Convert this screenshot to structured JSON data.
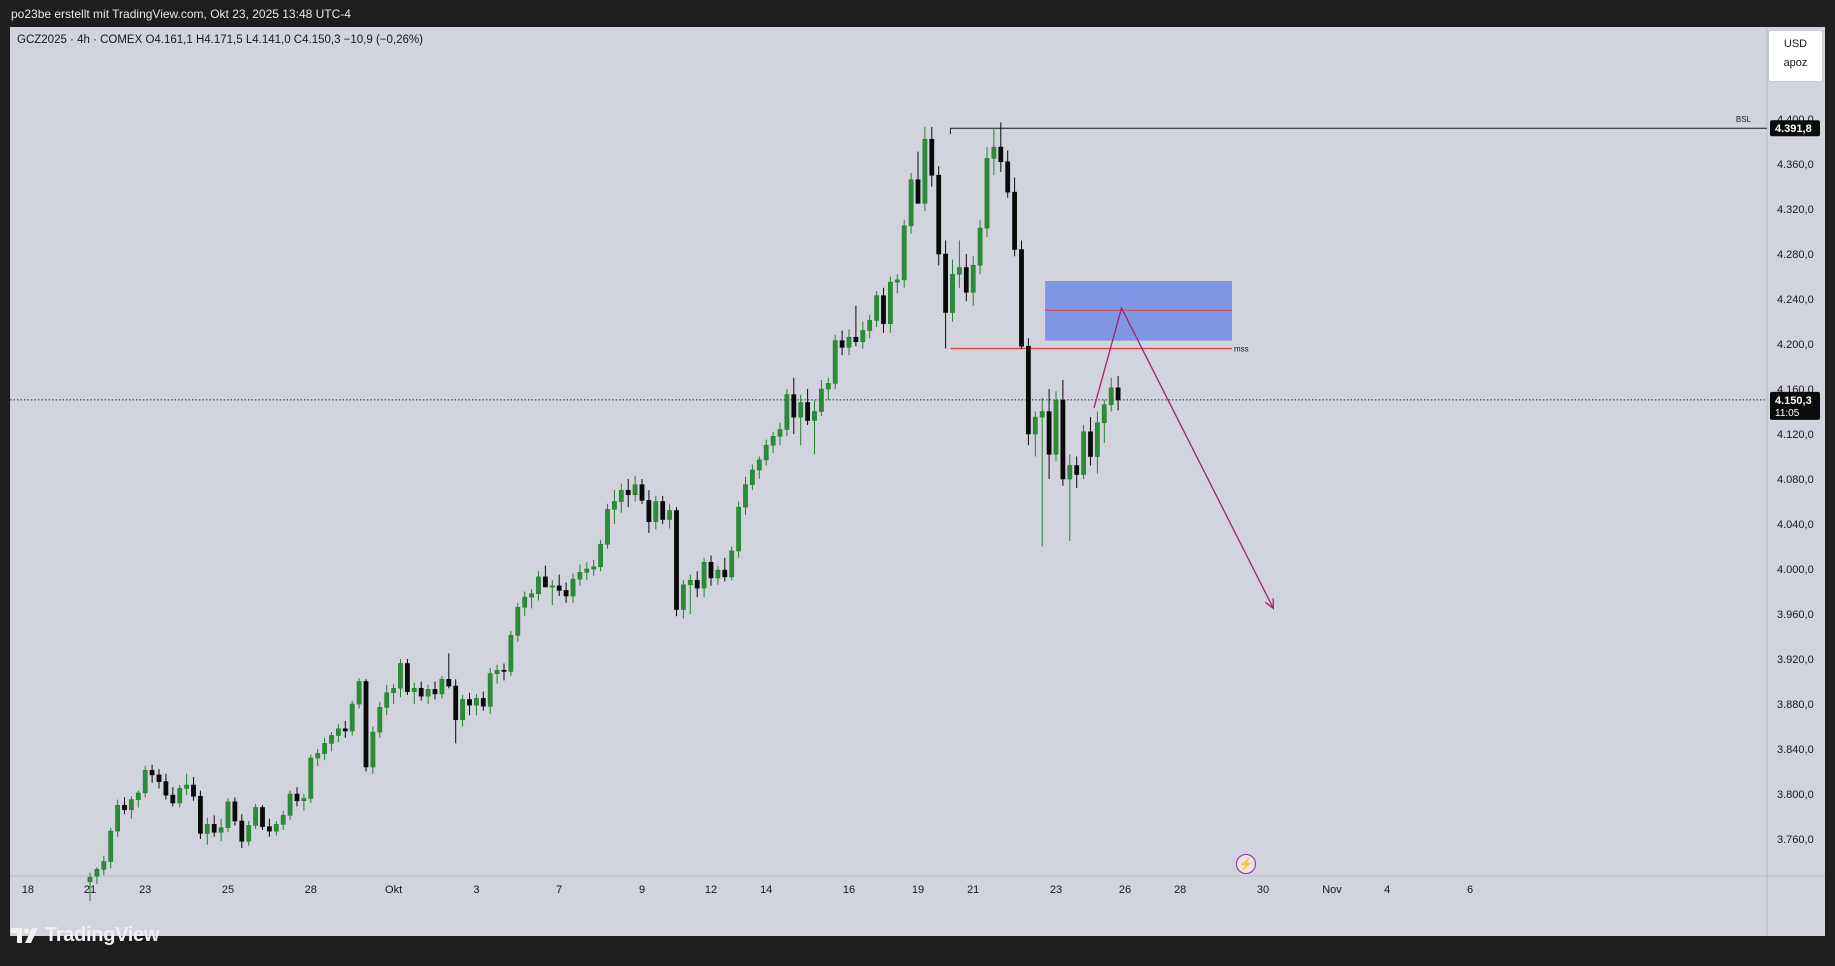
{
  "header": {
    "attribution": "po23be erstellt mit TradingView.com, Okt 23, 2025 13:48 UTC-4"
  },
  "legend": {
    "text": "GCZ2025 · 4h · COMEX  O4.161,1  H4.171,5  L4.141,0  C4.150,3  −10,9 (−0,26%)"
  },
  "unit_box": {
    "currency": "USD",
    "scale": "apoz"
  },
  "brand": {
    "logo_text": "TradingView"
  },
  "colors": {
    "up": "#23802f",
    "down": "#0a0a0a",
    "zone": "#5f7fe6",
    "line_red": "#e0413f",
    "arrow": "#a0226e"
  },
  "chart_data": {
    "type": "candlestick",
    "symbol": "GCZ2025",
    "interval": "4h",
    "exchange": "COMEX",
    "y_ticks": [
      3760,
      3800,
      3840,
      3880,
      3920,
      3960,
      4000,
      4040,
      4080,
      4120,
      4160,
      4200,
      4240,
      4280,
      4320,
      4360,
      4400
    ],
    "y_tick_labels": [
      "3.760,0",
      "3.800,0",
      "3.840,0",
      "3.880,0",
      "3.920,0",
      "3.960,0",
      "4.000,0",
      "4.040,0",
      "4.080,0",
      "4.120,0",
      "4.160,0",
      "4.200,0",
      "4.240,0",
      "4.280,0",
      "4.320,0",
      "4.360,0",
      "4.400,0"
    ],
    "ylim": [
      3725,
      4480
    ],
    "x_ticks": [
      {
        "label": "18",
        "i": -9
      },
      {
        "label": "21",
        "i": 0
      },
      {
        "label": "23",
        "i": 8
      },
      {
        "label": "25",
        "i": 20
      },
      {
        "label": "28",
        "i": 32
      },
      {
        "label": "Okt",
        "i": 44
      },
      {
        "label": "3",
        "i": 56
      },
      {
        "label": "7",
        "i": 68
      },
      {
        "label": "9",
        "i": 80
      },
      {
        "label": "12",
        "i": 90
      },
      {
        "label": "14",
        "i": 98
      },
      {
        "label": "16",
        "i": 110
      },
      {
        "label": "19",
        "i": 120
      },
      {
        "label": "21",
        "i": 128
      },
      {
        "label": "23",
        "i": 140
      },
      {
        "label": "26",
        "i": 150
      },
      {
        "label": "28",
        "i": 158
      },
      {
        "label": "30",
        "i": 170
      },
      {
        "label": "Nov",
        "i": 180
      },
      {
        "label": "4",
        "i": 188
      },
      {
        "label": "6",
        "i": 200
      }
    ],
    "last_price": {
      "value": 4150.3,
      "label": "4.150,3",
      "countdown": "11:05"
    },
    "bsl": {
      "value": 4391.8,
      "label": "4.391,8",
      "text": "BSL"
    },
    "mss": {
      "value": 4196,
      "text": "mss"
    },
    "zone": {
      "top": 4256,
      "bottom": 4203,
      "mid": 4230
    },
    "projection": [
      {
        "i": 145.5,
        "price": 4143
      },
      {
        "i": 149.5,
        "price": 4232
      },
      {
        "i": 171.5,
        "price": 3965
      }
    ],
    "candles": [
      {
        "o": 3722,
        "h": 3730,
        "l": 3705,
        "c": 3726
      },
      {
        "o": 3727,
        "h": 3735,
        "l": 3720,
        "c": 3733
      },
      {
        "o": 3733,
        "h": 3745,
        "l": 3728,
        "c": 3740
      },
      {
        "o": 3740,
        "h": 3770,
        "l": 3734,
        "c": 3767
      },
      {
        "o": 3767,
        "h": 3795,
        "l": 3762,
        "c": 3790
      },
      {
        "o": 3790,
        "h": 3797,
        "l": 3782,
        "c": 3786
      },
      {
        "o": 3786,
        "h": 3798,
        "l": 3778,
        "c": 3795
      },
      {
        "o": 3795,
        "h": 3803,
        "l": 3788,
        "c": 3801
      },
      {
        "o": 3801,
        "h": 3825,
        "l": 3797,
        "c": 3821
      },
      {
        "o": 3821,
        "h": 3826,
        "l": 3810,
        "c": 3817
      },
      {
        "o": 3817,
        "h": 3822,
        "l": 3805,
        "c": 3811
      },
      {
        "o": 3811,
        "h": 3818,
        "l": 3795,
        "c": 3799
      },
      {
        "o": 3799,
        "h": 3806,
        "l": 3789,
        "c": 3792
      },
      {
        "o": 3792,
        "h": 3808,
        "l": 3788,
        "c": 3805
      },
      {
        "o": 3805,
        "h": 3818,
        "l": 3799,
        "c": 3808
      },
      {
        "o": 3808,
        "h": 3815,
        "l": 3794,
        "c": 3798
      },
      {
        "o": 3798,
        "h": 3803,
        "l": 3760,
        "c": 3765
      },
      {
        "o": 3765,
        "h": 3779,
        "l": 3755,
        "c": 3773
      },
      {
        "o": 3773,
        "h": 3781,
        "l": 3762,
        "c": 3766
      },
      {
        "o": 3766,
        "h": 3778,
        "l": 3758,
        "c": 3770
      },
      {
        "o": 3770,
        "h": 3796,
        "l": 3766,
        "c": 3793
      },
      {
        "o": 3793,
        "h": 3797,
        "l": 3772,
        "c": 3776
      },
      {
        "o": 3776,
        "h": 3782,
        "l": 3752,
        "c": 3758
      },
      {
        "o": 3758,
        "h": 3776,
        "l": 3754,
        "c": 3772
      },
      {
        "o": 3772,
        "h": 3791,
        "l": 3769,
        "c": 3788
      },
      {
        "o": 3788,
        "h": 3790,
        "l": 3768,
        "c": 3771
      },
      {
        "o": 3771,
        "h": 3778,
        "l": 3762,
        "c": 3767
      },
      {
        "o": 3767,
        "h": 3776,
        "l": 3763,
        "c": 3773
      },
      {
        "o": 3773,
        "h": 3785,
        "l": 3768,
        "c": 3781
      },
      {
        "o": 3781,
        "h": 3803,
        "l": 3777,
        "c": 3800
      },
      {
        "o": 3800,
        "h": 3806,
        "l": 3789,
        "c": 3794
      },
      {
        "o": 3794,
        "h": 3800,
        "l": 3785,
        "c": 3796
      },
      {
        "o": 3796,
        "h": 3835,
        "l": 3792,
        "c": 3832
      },
      {
        "o": 3832,
        "h": 3840,
        "l": 3825,
        "c": 3836
      },
      {
        "o": 3836,
        "h": 3850,
        "l": 3830,
        "c": 3845
      },
      {
        "o": 3845,
        "h": 3855,
        "l": 3838,
        "c": 3852
      },
      {
        "o": 3852,
        "h": 3862,
        "l": 3846,
        "c": 3858
      },
      {
        "o": 3858,
        "h": 3865,
        "l": 3850,
        "c": 3856
      },
      {
        "o": 3856,
        "h": 3883,
        "l": 3852,
        "c": 3880
      },
      {
        "o": 3880,
        "h": 3903,
        "l": 3876,
        "c": 3900
      },
      {
        "o": 3900,
        "h": 3902,
        "l": 3820,
        "c": 3824
      },
      {
        "o": 3824,
        "h": 3860,
        "l": 3818,
        "c": 3855
      },
      {
        "o": 3855,
        "h": 3882,
        "l": 3850,
        "c": 3877
      },
      {
        "o": 3877,
        "h": 3897,
        "l": 3870,
        "c": 3890
      },
      {
        "o": 3890,
        "h": 3898,
        "l": 3880,
        "c": 3894
      },
      {
        "o": 3894,
        "h": 3920,
        "l": 3886,
        "c": 3916
      },
      {
        "o": 3916,
        "h": 3920,
        "l": 3888,
        "c": 3891
      },
      {
        "o": 3891,
        "h": 3899,
        "l": 3880,
        "c": 3894
      },
      {
        "o": 3894,
        "h": 3900,
        "l": 3883,
        "c": 3887
      },
      {
        "o": 3887,
        "h": 3897,
        "l": 3880,
        "c": 3893
      },
      {
        "o": 3893,
        "h": 3900,
        "l": 3884,
        "c": 3889
      },
      {
        "o": 3889,
        "h": 3905,
        "l": 3885,
        "c": 3902
      },
      {
        "o": 3902,
        "h": 3925,
        "l": 3894,
        "c": 3896
      },
      {
        "o": 3896,
        "h": 3902,
        "l": 3845,
        "c": 3866
      },
      {
        "o": 3866,
        "h": 3888,
        "l": 3860,
        "c": 3884
      },
      {
        "o": 3884,
        "h": 3890,
        "l": 3870,
        "c": 3879
      },
      {
        "o": 3879,
        "h": 3889,
        "l": 3870,
        "c": 3885
      },
      {
        "o": 3885,
        "h": 3891,
        "l": 3874,
        "c": 3878
      },
      {
        "o": 3878,
        "h": 3912,
        "l": 3871,
        "c": 3907
      },
      {
        "o": 3907,
        "h": 3915,
        "l": 3898,
        "c": 3910
      },
      {
        "o": 3910,
        "h": 3916,
        "l": 3901,
        "c": 3909
      },
      {
        "o": 3909,
        "h": 3945,
        "l": 3905,
        "c": 3941
      },
      {
        "o": 3941,
        "h": 3970,
        "l": 3935,
        "c": 3966
      },
      {
        "o": 3966,
        "h": 3980,
        "l": 3958,
        "c": 3975
      },
      {
        "o": 3975,
        "h": 3982,
        "l": 3965,
        "c": 3978
      },
      {
        "o": 3978,
        "h": 3998,
        "l": 3972,
        "c": 3993
      },
      {
        "o": 3993,
        "h": 4003,
        "l": 3985,
        "c": 3984
      },
      {
        "o": 3984,
        "h": 3990,
        "l": 3968,
        "c": 3985
      },
      {
        "o": 3985,
        "h": 3995,
        "l": 3976,
        "c": 3981
      },
      {
        "o": 3981,
        "h": 3988,
        "l": 3970,
        "c": 3976
      },
      {
        "o": 3976,
        "h": 3996,
        "l": 3970,
        "c": 3991
      },
      {
        "o": 3991,
        "h": 4004,
        "l": 3985,
        "c": 3997
      },
      {
        "o": 3997,
        "h": 4006,
        "l": 3990,
        "c": 4000
      },
      {
        "o": 4000,
        "h": 4008,
        "l": 3994,
        "c": 4002
      },
      {
        "o": 4002,
        "h": 4026,
        "l": 3998,
        "c": 4022
      },
      {
        "o": 4022,
        "h": 4058,
        "l": 4018,
        "c": 4053
      },
      {
        "o": 4053,
        "h": 4070,
        "l": 4040,
        "c": 4060
      },
      {
        "o": 4060,
        "h": 4076,
        "l": 4050,
        "c": 4070
      },
      {
        "o": 4070,
        "h": 4080,
        "l": 4055,
        "c": 4066
      },
      {
        "o": 4066,
        "h": 4083,
        "l": 4060,
        "c": 4075
      },
      {
        "o": 4075,
        "h": 4080,
        "l": 4058,
        "c": 4061
      },
      {
        "o": 4061,
        "h": 4070,
        "l": 4032,
        "c": 4042
      },
      {
        "o": 4042,
        "h": 4065,
        "l": 4035,
        "c": 4060
      },
      {
        "o": 4060,
        "h": 4065,
        "l": 4040,
        "c": 4044
      },
      {
        "o": 4044,
        "h": 4058,
        "l": 4036,
        "c": 4052
      },
      {
        "o": 4052,
        "h": 4055,
        "l": 3958,
        "c": 3964
      },
      {
        "o": 3964,
        "h": 3990,
        "l": 3956,
        "c": 3986
      },
      {
        "o": 3986,
        "h": 3995,
        "l": 3960,
        "c": 3990
      },
      {
        "o": 3990,
        "h": 3998,
        "l": 3975,
        "c": 3983
      },
      {
        "o": 3983,
        "h": 4010,
        "l": 3975,
        "c": 4006
      },
      {
        "o": 4006,
        "h": 4012,
        "l": 3985,
        "c": 3992
      },
      {
        "o": 3992,
        "h": 4003,
        "l": 3986,
        "c": 3999
      },
      {
        "o": 3999,
        "h": 4010,
        "l": 3989,
        "c": 3993
      },
      {
        "o": 3993,
        "h": 4020,
        "l": 3990,
        "c": 4016
      },
      {
        "o": 4016,
        "h": 4060,
        "l": 4010,
        "c": 4055
      },
      {
        "o": 4055,
        "h": 4082,
        "l": 4048,
        "c": 4075
      },
      {
        "o": 4075,
        "h": 4093,
        "l": 4070,
        "c": 4088
      },
      {
        "o": 4088,
        "h": 4100,
        "l": 4080,
        "c": 4097
      },
      {
        "o": 4097,
        "h": 4115,
        "l": 4092,
        "c": 4110
      },
      {
        "o": 4110,
        "h": 4122,
        "l": 4103,
        "c": 4118
      },
      {
        "o": 4118,
        "h": 4130,
        "l": 4110,
        "c": 4124
      },
      {
        "o": 4124,
        "h": 4160,
        "l": 4118,
        "c": 4155
      },
      {
        "o": 4155,
        "h": 4170,
        "l": 4120,
        "c": 4135
      },
      {
        "o": 4135,
        "h": 4155,
        "l": 4110,
        "c": 4148
      },
      {
        "o": 4148,
        "h": 4160,
        "l": 4128,
        "c": 4132
      },
      {
        "o": 4132,
        "h": 4150,
        "l": 4102,
        "c": 4140
      },
      {
        "o": 4140,
        "h": 4168,
        "l": 4136,
        "c": 4160
      },
      {
        "o": 4160,
        "h": 4170,
        "l": 4150,
        "c": 4165
      },
      {
        "o": 4165,
        "h": 4208,
        "l": 4160,
        "c": 4203
      },
      {
        "o": 4203,
        "h": 4212,
        "l": 4190,
        "c": 4197
      },
      {
        "o": 4197,
        "h": 4213,
        "l": 4190,
        "c": 4206
      },
      {
        "o": 4206,
        "h": 4234,
        "l": 4198,
        "c": 4202
      },
      {
        "o": 4202,
        "h": 4220,
        "l": 4196,
        "c": 4212
      },
      {
        "o": 4212,
        "h": 4226,
        "l": 4205,
        "c": 4221
      },
      {
        "o": 4221,
        "h": 4247,
        "l": 4215,
        "c": 4243
      },
      {
        "o": 4243,
        "h": 4250,
        "l": 4210,
        "c": 4218
      },
      {
        "o": 4218,
        "h": 4260,
        "l": 4210,
        "c": 4255
      },
      {
        "o": 4255,
        "h": 4262,
        "l": 4245,
        "c": 4257
      },
      {
        "o": 4257,
        "h": 4310,
        "l": 4250,
        "c": 4305
      },
      {
        "o": 4305,
        "h": 4352,
        "l": 4298,
        "c": 4346
      },
      {
        "o": 4346,
        "h": 4371,
        "l": 4330,
        "c": 4325
      },
      {
        "o": 4325,
        "h": 4393,
        "l": 4318,
        "c": 4382
      },
      {
        "o": 4382,
        "h": 4393,
        "l": 4340,
        "c": 4350
      },
      {
        "o": 4350,
        "h": 4358,
        "l": 4270,
        "c": 4280
      },
      {
        "o": 4280,
        "h": 4292,
        "l": 4196,
        "c": 4228
      },
      {
        "o": 4228,
        "h": 4275,
        "l": 4220,
        "c": 4262
      },
      {
        "o": 4262,
        "h": 4292,
        "l": 4250,
        "c": 4268
      },
      {
        "o": 4268,
        "h": 4280,
        "l": 4238,
        "c": 4246
      },
      {
        "o": 4246,
        "h": 4278,
        "l": 4234,
        "c": 4270
      },
      {
        "o": 4270,
        "h": 4310,
        "l": 4262,
        "c": 4303
      },
      {
        "o": 4303,
        "h": 4375,
        "l": 4295,
        "c": 4365
      },
      {
        "o": 4365,
        "h": 4392,
        "l": 4350,
        "c": 4375
      },
      {
        "o": 4375,
        "h": 4397,
        "l": 4353,
        "c": 4362
      },
      {
        "o": 4362,
        "h": 4372,
        "l": 4330,
        "c": 4335
      },
      {
        "o": 4335,
        "h": 4348,
        "l": 4278,
        "c": 4284
      },
      {
        "o": 4284,
        "h": 4292,
        "l": 4196,
        "c": 4198
      },
      {
        "o": 4198,
        "h": 4205,
        "l": 4110,
        "c": 4120
      },
      {
        "o": 4120,
        "h": 4140,
        "l": 4100,
        "c": 4135
      },
      {
        "o": 4135,
        "h": 4152,
        "l": 4020,
        "c": 4140
      },
      {
        "o": 4140,
        "h": 4160,
        "l": 4080,
        "c": 4102
      },
      {
        "o": 4102,
        "h": 4158,
        "l": 4096,
        "c": 4150
      },
      {
        "o": 4150,
        "h": 4168,
        "l": 4074,
        "c": 4080
      },
      {
        "o": 4080,
        "h": 4102,
        "l": 4025,
        "c": 4092
      },
      {
        "o": 4092,
        "h": 4100,
        "l": 4072,
        "c": 4084
      },
      {
        "o": 4084,
        "h": 4128,
        "l": 4080,
        "c": 4122
      },
      {
        "o": 4122,
        "h": 4135,
        "l": 4092,
        "c": 4100
      },
      {
        "o": 4100,
        "h": 4140,
        "l": 4085,
        "c": 4130
      },
      {
        "o": 4130,
        "h": 4150,
        "l": 4112,
        "c": 4146
      },
      {
        "o": 4146,
        "h": 4170,
        "l": 4140,
        "c": 4161
      },
      {
        "o": 4161,
        "h": 4171.5,
        "l": 4141,
        "c": 4150.3
      }
    ]
  }
}
